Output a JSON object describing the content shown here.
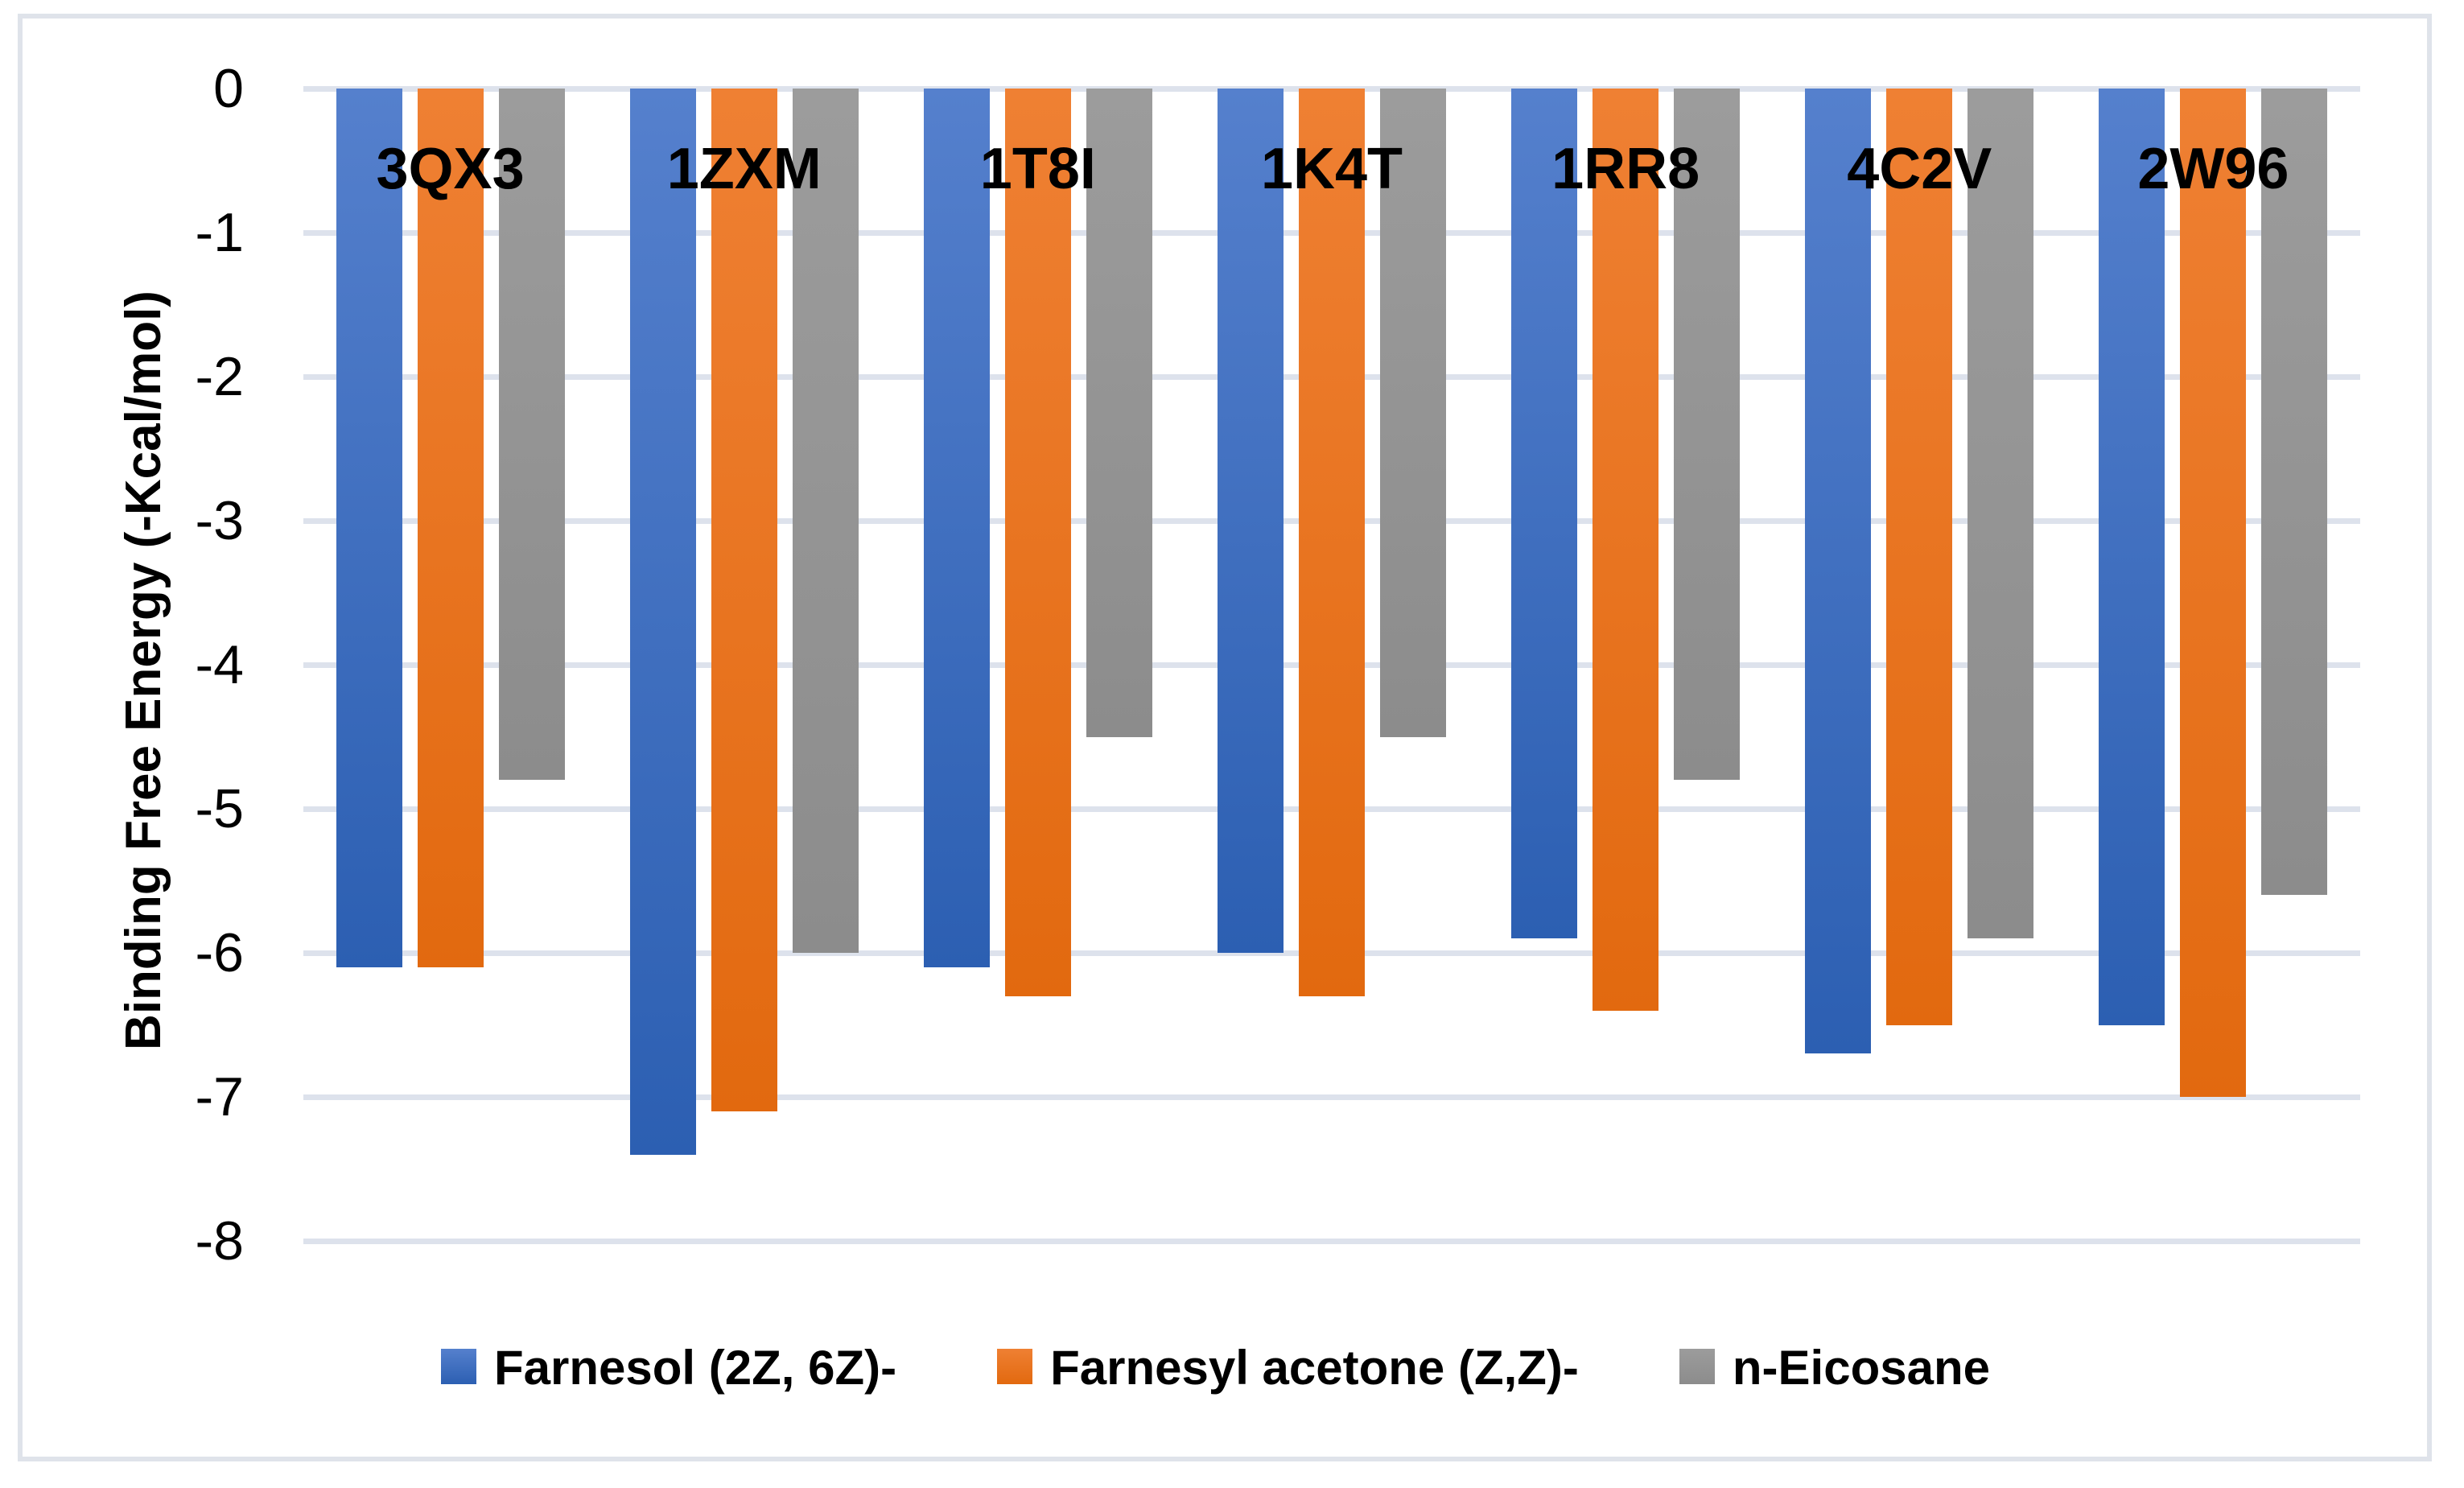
{
  "chart_data": {
    "type": "bar",
    "orientation": "vertical-negative",
    "title": "",
    "categories": [
      "3QX3",
      "1ZXM",
      "1T8I",
      "1K4T",
      "1RR8",
      "4C2V",
      "2W96"
    ],
    "series": [
      {
        "name": "Farnesol (2Z, 6Z)-",
        "color_top": "#5580cd",
        "color_bottom": "#2c5fb2",
        "values": [
          -6.1,
          -7.4,
          -6.1,
          -6.0,
          -5.9,
          -6.7,
          -6.5
        ]
      },
      {
        "name": "Farnesyl acetone (Z,Z)-",
        "color_top": "#ef8033",
        "color_bottom": "#e2690f",
        "values": [
          -6.1,
          -7.1,
          -6.3,
          -6.3,
          -6.4,
          -6.5,
          -7.0
        ]
      },
      {
        "name": "n-Eicosane",
        "color_top": "#9c9c9c",
        "color_bottom": "#8c8c8c",
        "values": [
          -4.8,
          -6.0,
          -4.5,
          -4.5,
          -4.8,
          -5.9,
          -5.6
        ]
      }
    ],
    "ylabel": "Binding Free Energy (-Kcal/mol)",
    "yticks": [
      0,
      -1,
      -2,
      -3,
      -4,
      -5,
      -6,
      -7,
      -8
    ],
    "ylim": [
      0,
      -8
    ],
    "grid": true,
    "gridline_color": "#dde2ec",
    "border_color": "#dfe3ea",
    "legend_position": "bottom",
    "background_color": "#ffffff"
  }
}
